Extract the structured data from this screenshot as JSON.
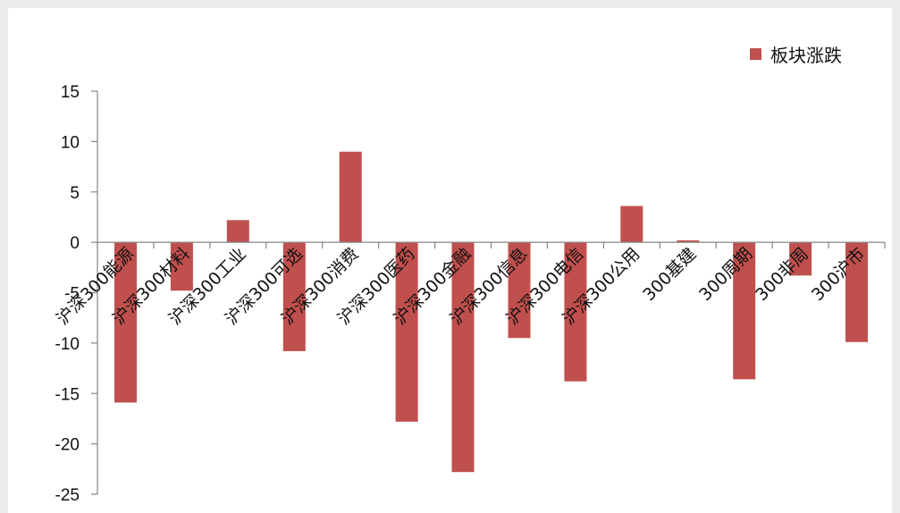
{
  "legend": {
    "label": "板块涨跌",
    "color": "#c0504d"
  },
  "chart_data": {
    "type": "bar",
    "categories": [
      "沪深300能源",
      "沪深300材料",
      "沪深300工业",
      "沪深300可选",
      "沪深300消费",
      "沪深300医药",
      "沪深300金融",
      "沪深300信息",
      "沪深300电信",
      "沪深300公用",
      "300基建",
      "300周期",
      "300非周",
      "300沪市"
    ],
    "series": [
      {
        "name": "板块涨跌",
        "color": "#c0504d",
        "values": [
          -15.9,
          -4.8,
          2.2,
          -10.8,
          9.0,
          -17.8,
          -22.8,
          -9.5,
          -13.8,
          3.6,
          0.2,
          -13.6,
          -3.3,
          -9.9
        ]
      }
    ],
    "yticks": [
      "15",
      "10",
      "5",
      "0",
      "-5",
      "-10",
      "-15",
      "-20",
      "-25"
    ],
    "ylim": [
      -25,
      15
    ],
    "grid": false,
    "legend_position": "top-right"
  }
}
